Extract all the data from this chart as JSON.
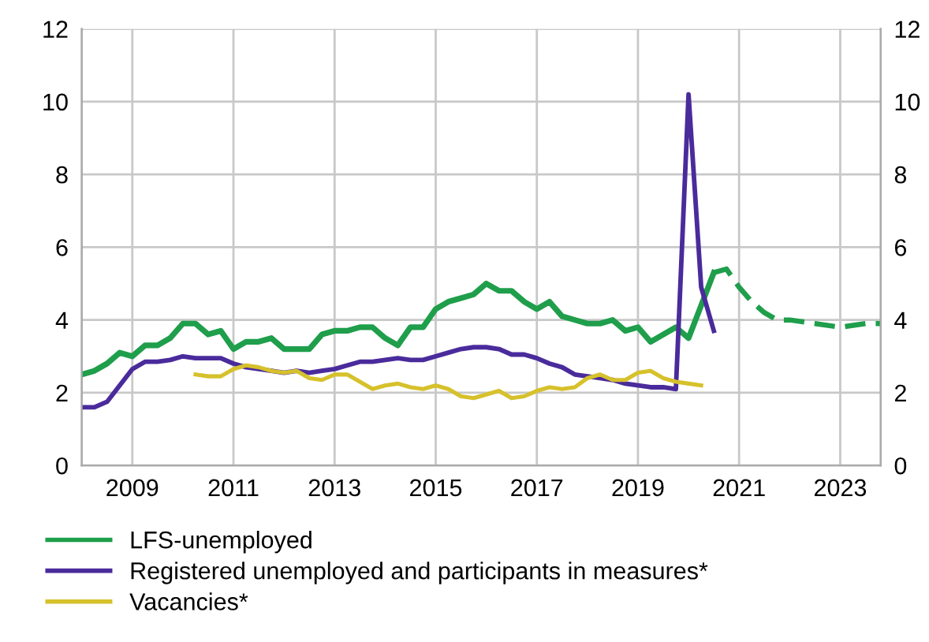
{
  "chart_data": {
    "type": "line",
    "xlim": [
      2008,
      2023.8
    ],
    "xticks": [
      2009,
      2011,
      2013,
      2015,
      2017,
      2019,
      2021,
      2023
    ],
    "ylim": [
      0,
      12
    ],
    "yticks": [
      0,
      2,
      4,
      6,
      8,
      10,
      12
    ],
    "y2lim": [
      0,
      12
    ],
    "y2ticks": [
      0,
      2,
      4,
      6,
      8,
      10,
      12
    ],
    "grid": true,
    "legend": "bottom",
    "marker": "none",
    "series": [
      {
        "name": "LFS-unemployed",
        "color": "#1f9e4b",
        "line_style": "solid",
        "x": [
          2008,
          2008.25,
          2008.5,
          2008.75,
          2009,
          2009.25,
          2009.5,
          2009.75,
          2010,
          2010.25,
          2010.5,
          2010.75,
          2011,
          2011.25,
          2011.5,
          2011.75,
          2012,
          2012.25,
          2012.5,
          2012.75,
          2013,
          2013.25,
          2013.5,
          2013.75,
          2014,
          2014.25,
          2014.5,
          2014.75,
          2015,
          2015.25,
          2015.5,
          2015.75,
          2016,
          2016.25,
          2016.5,
          2016.75,
          2017,
          2017.25,
          2017.5,
          2017.75,
          2018,
          2018.25,
          2018.5,
          2018.75,
          2019,
          2019.25,
          2019.5,
          2019.75,
          2020,
          2020.25,
          2020.5
        ],
        "values": [
          2.5,
          2.6,
          2.8,
          3.1,
          3.0,
          3.3,
          3.3,
          3.5,
          3.9,
          3.9,
          3.6,
          3.7,
          3.2,
          3.4,
          3.4,
          3.5,
          3.2,
          3.2,
          3.2,
          3.6,
          3.7,
          3.7,
          3.8,
          3.8,
          3.5,
          3.3,
          3.8,
          3.8,
          4.3,
          4.5,
          4.6,
          4.7,
          5.0,
          4.8,
          4.8,
          4.5,
          4.3,
          4.5,
          4.1,
          4.0,
          3.9,
          3.9,
          4.0,
          3.7,
          3.8,
          3.4,
          3.6,
          3.8,
          3.5,
          4.4,
          5.3
        ]
      },
      {
        "color": "#1f9e4b",
        "line_style": "dashed",
        "x": [
          2020.5,
          2020.75,
          2021,
          2021.25,
          2021.5,
          2021.75,
          2022,
          2022.5,
          2023,
          2023.5,
          2023.8
        ],
        "values": [
          5.3,
          5.4,
          4.9,
          4.5,
          4.2,
          4.0,
          4.0,
          3.9,
          3.8,
          3.9,
          3.9
        ]
      },
      {
        "name": "Registered unemployed and participants in measures*",
        "color": "#4a2b9b",
        "line_style": "solid",
        "x": [
          2008,
          2008.25,
          2008.5,
          2008.75,
          2009,
          2009.25,
          2009.5,
          2009.75,
          2010,
          2010.25,
          2010.5,
          2010.75,
          2011,
          2011.25,
          2011.5,
          2011.75,
          2012,
          2012.25,
          2012.5,
          2012.75,
          2013,
          2013.25,
          2013.5,
          2013.75,
          2014,
          2014.25,
          2014.5,
          2014.75,
          2015,
          2015.25,
          2015.5,
          2015.75,
          2016,
          2016.25,
          2016.5,
          2016.75,
          2017,
          2017.25,
          2017.5,
          2017.75,
          2018,
          2018.25,
          2018.5,
          2018.75,
          2019,
          2019.25,
          2019.5,
          2019.75,
          2020,
          2020.25,
          2020.5
        ],
        "values": [
          1.6,
          1.6,
          1.75,
          2.2,
          2.65,
          2.85,
          2.85,
          2.9,
          3.0,
          2.95,
          2.95,
          2.95,
          2.8,
          2.7,
          2.65,
          2.6,
          2.55,
          2.6,
          2.55,
          2.6,
          2.65,
          2.75,
          2.85,
          2.85,
          2.9,
          2.95,
          2.9,
          2.9,
          3.0,
          3.1,
          3.2,
          3.25,
          3.25,
          3.2,
          3.05,
          3.05,
          2.95,
          2.8,
          2.7,
          2.5,
          2.45,
          2.4,
          2.35,
          2.25,
          2.2,
          2.15,
          2.15,
          2.1,
          10.2,
          4.9,
          3.7
        ]
      },
      {
        "name": "Vacancies*",
        "color": "#d6c12c",
        "line_style": "solid",
        "x": [
          2010.25,
          2010.5,
          2010.75,
          2011,
          2011.25,
          2011.5,
          2011.75,
          2012,
          2012.25,
          2012.5,
          2012.75,
          2013,
          2013.25,
          2013.5,
          2013.75,
          2014,
          2014.25,
          2014.5,
          2014.75,
          2015,
          2015.25,
          2015.5,
          2015.75,
          2016,
          2016.25,
          2016.5,
          2016.75,
          2017,
          2017.25,
          2017.5,
          2017.75,
          2018,
          2018.25,
          2018.5,
          2018.75,
          2019,
          2019.25,
          2019.5,
          2019.75,
          2020,
          2020.25
        ],
        "values": [
          2.5,
          2.45,
          2.45,
          2.65,
          2.75,
          2.7,
          2.6,
          2.55,
          2.6,
          2.4,
          2.35,
          2.5,
          2.5,
          2.3,
          2.1,
          2.2,
          2.25,
          2.15,
          2.1,
          2.2,
          2.1,
          1.9,
          1.85,
          1.95,
          2.05,
          1.85,
          1.9,
          2.05,
          2.15,
          2.1,
          2.15,
          2.4,
          2.5,
          2.35,
          2.35,
          2.55,
          2.6,
          2.4,
          2.3,
          2.25,
          2.2
        ]
      }
    ]
  }
}
